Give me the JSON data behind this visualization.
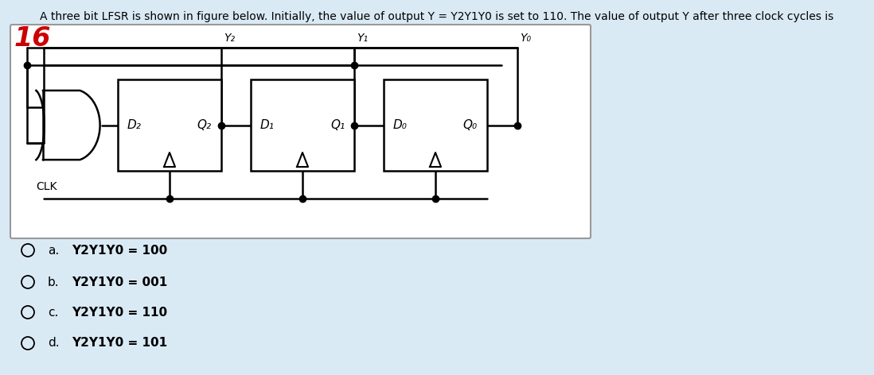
{
  "bg_color": "#daeaf5",
  "circuit_bg": "#ffffff",
  "title_text": "A three bit LFSR is shown in figure below. Initially, the value of output Y = Y2Y1Y0 is set to 110. The value of output Y after three clock cycles is",
  "question_number": "16",
  "question_number_color": "#cc0000",
  "options": [
    {
      "label": "a.",
      "text": "Y2Y1Y0 = 100"
    },
    {
      "label": "b.",
      "text": "Y2Y1Y0 = 001"
    },
    {
      "label": "c.",
      "text": "Y2Y1Y0 = 110"
    },
    {
      "label": "d.",
      "text": "Y2Y1Y0 = 101"
    }
  ]
}
